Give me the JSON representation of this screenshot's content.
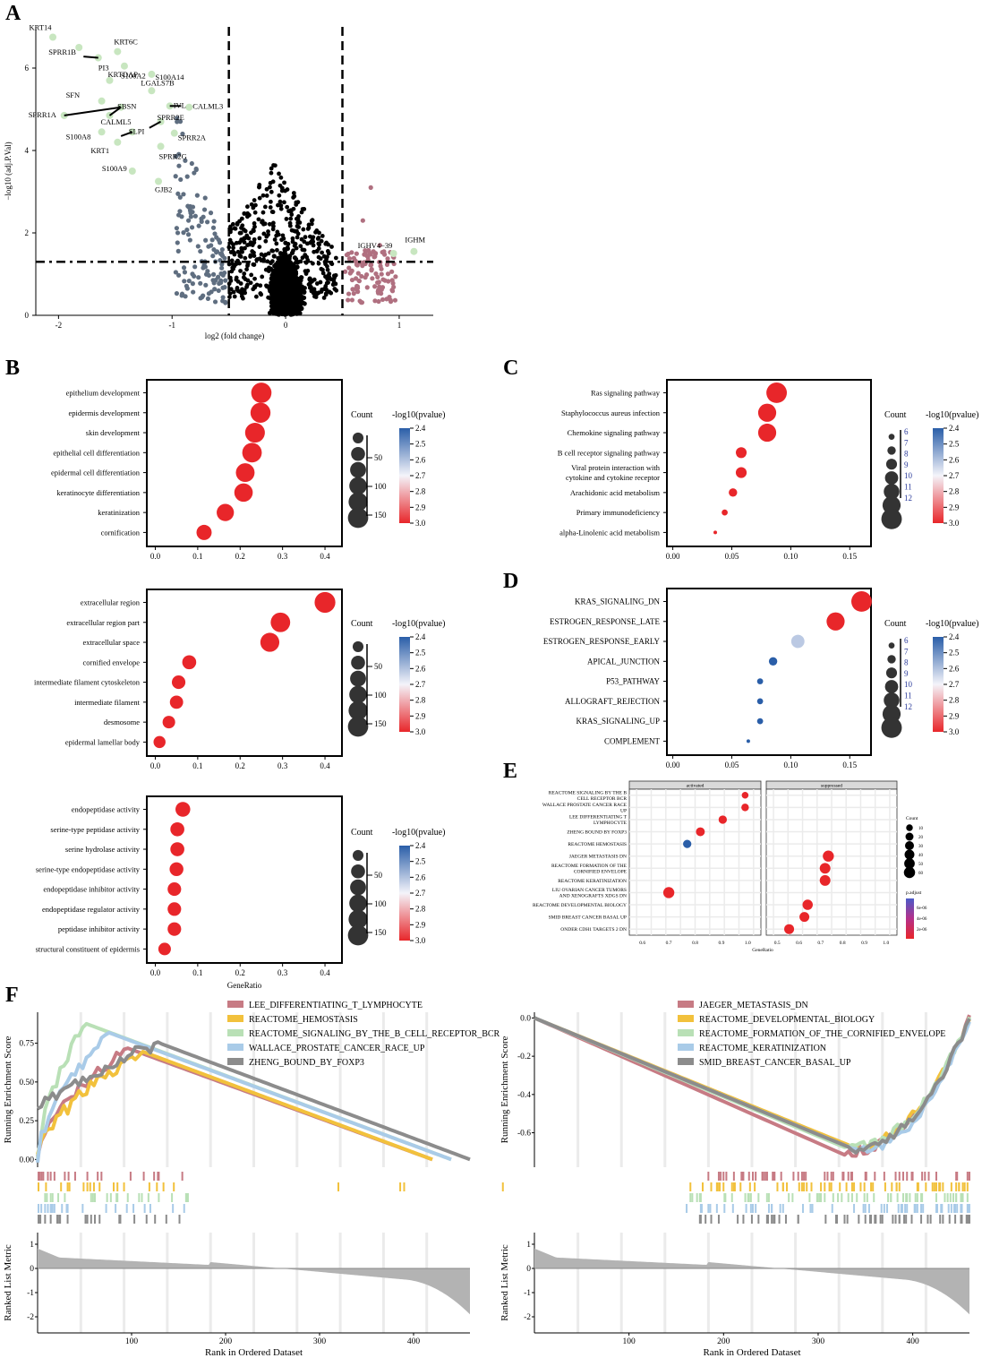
{
  "panel_labels": [
    "A",
    "B",
    "C",
    "D",
    "E",
    "F"
  ],
  "colors": {
    "up": "#b07080",
    "down": "#5f6e80",
    "ns": "#000000",
    "highlight": "#c8e6c0",
    "dot_red": "#e8262a",
    "dot_blue": "#2a5ea8",
    "dot_light": "#d8dcf0",
    "grid": "#ebebeb",
    "gsea_red": "#c77b84",
    "gsea_yellow": "#f2c13c",
    "gsea_green": "#b9e0b6",
    "gsea_blue": "#a9cbe8",
    "gsea_gray": "#8c8c8c"
  },
  "chart_data": [
    {
      "id": "A",
      "type": "scatter",
      "xlabel": "log2 (fold change)",
      "ylabel": "−log10 (adj.P.Val)",
      "xlim": [
        -2.2,
        1.3
      ],
      "ylim": [
        0,
        7
      ],
      "xticks": [
        -2,
        -1,
        0,
        1
      ],
      "yticks": [
        0,
        2,
        4,
        6
      ],
      "thresholds": {
        "x": [
          -0.5,
          0.5
        ],
        "y": 1.3
      },
      "labeled_points": [
        {
          "label": "KRT14",
          "x": -2.05,
          "y": 6.75
        },
        {
          "label": "KRT6C",
          "x": -1.48,
          "y": 6.4
        },
        {
          "label": "SPRR1B",
          "x": -1.82,
          "y": 6.5
        },
        {
          "label": "PI3",
          "x": -1.65,
          "y": 6.25
        },
        {
          "label": "S100A2",
          "x": -1.42,
          "y": 6.05
        },
        {
          "label": "S100A14",
          "x": -1.18,
          "y": 5.85
        },
        {
          "label": "KRTDAP",
          "x": -1.55,
          "y": 5.7
        },
        {
          "label": "LGALS7B",
          "x": -1.18,
          "y": 5.45
        },
        {
          "label": "SFN",
          "x": -1.62,
          "y": 5.2
        },
        {
          "label": "SBSN",
          "x": -1.45,
          "y": 5.05
        },
        {
          "label": "IVL",
          "x": -1.02,
          "y": 5.08
        },
        {
          "label": "CALML3",
          "x": -0.85,
          "y": 5.05
        },
        {
          "label": "SPRR1A",
          "x": -1.95,
          "y": 4.85
        },
        {
          "label": "CALML5",
          "x": -1.55,
          "y": 4.85
        },
        {
          "label": "SPRR2E",
          "x": -1.1,
          "y": 4.7
        },
        {
          "label": "S100A8",
          "x": -1.62,
          "y": 4.45
        },
        {
          "label": "SLPI",
          "x": -1.35,
          "y": 4.45
        },
        {
          "label": "SPRR2A",
          "x": -0.98,
          "y": 4.42
        },
        {
          "label": "KRT1",
          "x": -1.48,
          "y": 4.2
        },
        {
          "label": "SPRR2G",
          "x": -1.1,
          "y": 4.1
        },
        {
          "label": "S100A9",
          "x": -1.35,
          "y": 3.5
        },
        {
          "label": "GJB2",
          "x": -1.12,
          "y": 3.25
        },
        {
          "label": "IGHV4−39",
          "x": 0.95,
          "y": 1.5
        },
        {
          "label": "IGHM",
          "x": 1.13,
          "y": 1.55
        }
      ]
    },
    {
      "id": "B1",
      "type": "dotplot",
      "title": "",
      "xlim": [
        -0.02,
        0.44
      ],
      "xticks": [
        0.0,
        0.1,
        0.2,
        0.3,
        0.4
      ],
      "xlabel": "",
      "categories": [
        "epithelium development",
        "epidermis development",
        "skin development",
        "epithelial cell differentiation",
        "epidermal cell differentiation",
        "keratinocyte differentiation",
        "keratinization",
        "cornification"
      ],
      "x": [
        0.25,
        0.248,
        0.235,
        0.228,
        0.212,
        0.208,
        0.165,
        0.115
      ],
      "count": [
        150,
        145,
        140,
        135,
        120,
        115,
        95,
        65
      ],
      "pvalue": [
        3.0,
        3.0,
        3.0,
        3.0,
        3.0,
        3.0,
        3.0,
        3.0
      ],
      "legend": {
        "count_title": "Count",
        "count_ticks": [
          "50",
          "100",
          "150"
        ],
        "color_title": "-log10(pvalue)",
        "color_ticks": [
          "2.4",
          "2.5",
          "2.6",
          "2.7",
          "2.8",
          "2.9",
          "3.0"
        ]
      }
    },
    {
      "id": "B2",
      "type": "dotplot",
      "xlim": [
        -0.02,
        0.44
      ],
      "xticks": [
        0.0,
        0.1,
        0.2,
        0.3,
        0.4
      ],
      "xlabel": "",
      "categories": [
        "extracellular region",
        "extracellular region part",
        "extracellular space",
        "cornified envelope",
        "intermediate filament cytoskeleton",
        "intermediate filament",
        "desmosome",
        "epidermal lamellar body"
      ],
      "x": [
        0.4,
        0.295,
        0.27,
        0.08,
        0.055,
        0.05,
        0.032,
        0.01
      ],
      "count": [
        160,
        135,
        125,
        50,
        45,
        42,
        35,
        30
      ],
      "pvalue": [
        3.0,
        3.0,
        3.0,
        3.0,
        3.0,
        3.0,
        3.0,
        3.0
      ],
      "legend": {
        "count_title": "Count",
        "count_ticks": [
          "50",
          "100",
          "150"
        ],
        "color_title": "-log10(pvalue)",
        "color_ticks": [
          "2.4",
          "2.5",
          "2.6",
          "2.7",
          "2.8",
          "2.9",
          "3.0"
        ]
      }
    },
    {
      "id": "B3",
      "type": "dotplot",
      "xlim": [
        -0.02,
        0.44
      ],
      "xticks": [
        0.0,
        0.1,
        0.2,
        0.3,
        0.4
      ],
      "xlabel": "GeneRatio",
      "categories": [
        "endopeptidase activity",
        "serine-type peptidase activity",
        "serine hydrolase activity",
        "serine-type endopeptidase activity",
        "endopeptidase inhibitor activity",
        "endopeptidase regulator activity",
        "peptidase inhibitor activity",
        "structural constituent of epidermis"
      ],
      "x": [
        0.065,
        0.052,
        0.052,
        0.05,
        0.045,
        0.045,
        0.045,
        0.022
      ],
      "count": [
        60,
        50,
        50,
        48,
        45,
        45,
        45,
        35
      ],
      "pvalue": [
        3.0,
        3.0,
        3.0,
        3.0,
        3.0,
        3.0,
        3.0,
        3.0
      ],
      "legend": {
        "count_title": "Count",
        "count_ticks": [
          "50",
          "100",
          "150"
        ],
        "color_title": "-log10(pvalue)",
        "color_ticks": [
          "2.4",
          "2.5",
          "2.6",
          "2.7",
          "2.8",
          "2.9",
          "3.0"
        ]
      }
    },
    {
      "id": "C",
      "type": "dotplot",
      "xlim": [
        -0.005,
        0.168
      ],
      "xticks": [
        0.0,
        0.05,
        0.1,
        0.15
      ],
      "xlabel": "",
      "categories": [
        "Ras signaling pathway",
        "Staphylococcus aureus infection",
        "Chemokine signaling pathway",
        "B cell receptor signaling pathway",
        "Viral protein interaction with\ncytokine and cytokine receptor",
        "Arachidonic acid metabolism",
        "Primary immunodeficiency",
        "alpha-Linolenic acid metabolism"
      ],
      "x": [
        0.088,
        0.08,
        0.08,
        0.058,
        0.058,
        0.051,
        0.044,
        0.036
      ],
      "count": [
        12,
        11,
        11,
        8,
        8,
        7,
        6,
        5
      ],
      "pvalue": [
        3.0,
        3.0,
        3.0,
        3.0,
        3.0,
        3.0,
        3.0,
        3.0
      ],
      "legend": {
        "count_title": "Count",
        "count_ticks": [
          "6",
          "7",
          "8",
          "9",
          "10",
          "11",
          "12"
        ],
        "color_title": "-log10(pvalue)",
        "color_ticks": [
          "2.4",
          "2.5",
          "2.6",
          "2.7",
          "2.8",
          "2.9",
          "3.0"
        ]
      }
    },
    {
      "id": "D",
      "type": "dotplot",
      "xlim": [
        -0.005,
        0.168
      ],
      "xticks": [
        0.0,
        0.05,
        0.1,
        0.15
      ],
      "xlabel": "",
      "categories": [
        "KRAS_SIGNALING_DN",
        "ESTROGEN_RESPONSE_LATE",
        "ESTROGEN_RESPONSE_EARLY",
        "APICAL_JUNCTION",
        "P53_PATHWAY",
        "ALLOGRAFT_REJECTION",
        "KRAS_SIGNALING_UP",
        "COMPLEMENT"
      ],
      "x": [
        0.16,
        0.138,
        0.106,
        0.085,
        0.074,
        0.074,
        0.074,
        0.064
      ],
      "count": [
        12,
        11,
        9,
        7,
        6,
        6,
        6,
        5
      ],
      "pvalue": [
        3.0,
        3.0,
        2.62,
        2.4,
        2.4,
        2.4,
        2.4,
        2.4
      ],
      "legend": {
        "count_title": "Count",
        "count_ticks": [
          "6",
          "7",
          "8",
          "9",
          "10",
          "11",
          "12"
        ],
        "color_title": "-log10(pvalue)",
        "color_ticks": [
          "2.4",
          "2.5",
          "2.6",
          "2.7",
          "2.8",
          "2.9",
          "3.0"
        ]
      }
    },
    {
      "id": "E",
      "type": "dotplot",
      "xlabel": "GeneRatio",
      "facets": [
        "activated",
        "suppressed"
      ],
      "xticks": [
        "0.6",
        "0.7",
        "0.8",
        "0.9",
        "1.0"
      ],
      "xticks_right": [
        "0.5",
        "0.6",
        "0.7",
        "0.8",
        "0.9",
        "1.0"
      ],
      "categories": [
        "REACTOME SIGNALING BY THE B\nCELL RECEPTOR BCR",
        "WALLACE PROSTATE CANCER RACE\nUP",
        "LEE DIFFERENTIATING T\nLYMPHOCYTE",
        "ZHENG BOUND BY FOXP3",
        "REACTOME HEMOSTASIS",
        "JAEGER METASTASIS DN",
        "REACTOME FORMATION OF THE\nCORNIFIED ENVELOPE",
        "REACTOME KERATINIZATION",
        "LIU OVARIAN CANCER TUMORS\nAND XENOGRAFTS XDGS DN",
        "REACTOME DEVELOPMENTAL BIOLOGY",
        "SMID BREAST CANCER BASAL UP",
        "ONDER CDH1 TARGETS 2 DN"
      ],
      "points": [
        {
          "facet": "activated",
          "x": 0.99,
          "count": 5,
          "color": "red"
        },
        {
          "facet": "activated",
          "x": 0.99,
          "count": 10,
          "color": "red"
        },
        {
          "facet": "activated",
          "x": 0.905,
          "count": 15,
          "color": "red"
        },
        {
          "facet": "activated",
          "x": 0.82,
          "count": 20,
          "color": "red"
        },
        {
          "facet": "activated",
          "x": 0.77,
          "count": 15,
          "color": "blue"
        },
        {
          "facet": "suppressed",
          "x": 0.735,
          "count": 45,
          "color": "red"
        },
        {
          "facet": "suppressed",
          "x": 0.72,
          "count": 40,
          "color": "red"
        },
        {
          "facet": "suppressed",
          "x": 0.72,
          "count": 40,
          "color": "red"
        },
        {
          "facet": "activated",
          "x": 0.7,
          "count": 45,
          "color": "red"
        },
        {
          "facet": "suppressed",
          "x": 0.64,
          "count": 35,
          "color": "red"
        },
        {
          "facet": "suppressed",
          "x": 0.625,
          "count": 30,
          "color": "red"
        },
        {
          "facet": "suppressed",
          "x": 0.555,
          "count": 30,
          "color": "red"
        }
      ],
      "legend": {
        "count_title": "Count",
        "count_ticks": [
          "10",
          "20",
          "30",
          "40",
          "50",
          "60"
        ],
        "color_title": "p.adjust",
        "color_ticks": [
          "6e-06",
          "4e-06",
          "2e-06"
        ]
      }
    },
    {
      "id": "F1",
      "type": "line",
      "ylabel_top": "Running Enrichment Score",
      "ylabel_bottom": "Ranked List Metric",
      "xlabel": "Rank in Ordered Dataset",
      "yticks_top": [
        "0.00",
        "0.25",
        "0.50",
        "0.75"
      ],
      "yticks_bottom": [
        "1",
        "0",
        "-1",
        "-2"
      ],
      "xticks": [
        "100",
        "200",
        "300",
        "400"
      ],
      "series": [
        {
          "name": "LEE_DIFFERENTIATING_T_LYMPHOCYTE",
          "color": "#c77b84"
        },
        {
          "name": "REACTOME_HEMOSTASIS",
          "color": "#f2c13c"
        },
        {
          "name": "REACTOME_SIGNALING_BY_THE_B_CELL_RECEPTOR_BCR",
          "color": "#b9e0b6"
        },
        {
          "name": "WALLACE_PROSTATE_CANCER_RACE_UP",
          "color": "#a9cbe8"
        },
        {
          "name": "ZHENG_BOUND_BY_FOXP3",
          "color": "#8c8c8c"
        }
      ]
    },
    {
      "id": "F2",
      "type": "line",
      "ylabel_top": "Running Enrichment Score",
      "ylabel_bottom": "Ranked List Metric",
      "xlabel": "Rank in Ordered Dataset",
      "yticks_top": [
        "0.0",
        "-0.2",
        "-0.4",
        "-0.6"
      ],
      "yticks_bottom": [
        "1",
        "0",
        "-1",
        "-2"
      ],
      "xticks": [
        "100",
        "200",
        "300",
        "400"
      ],
      "series": [
        {
          "name": "JAEGER_METASTASIS_DN",
          "color": "#c77b84"
        },
        {
          "name": "REACTOME_DEVELOPMENTAL_BIOLOGY",
          "color": "#f2c13c"
        },
        {
          "name": "REACTOME_FORMATION_OF_THE_CORNIFIED_ENVELOPE",
          "color": "#b9e0b6"
        },
        {
          "name": "REACTOME_KERATINIZATION",
          "color": "#a9cbe8"
        },
        {
          "name": "SMID_BREAST_CANCER_BASAL_UP",
          "color": "#8c8c8c"
        }
      ]
    }
  ]
}
